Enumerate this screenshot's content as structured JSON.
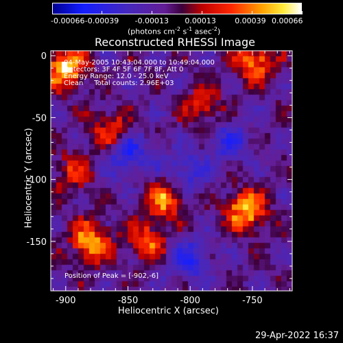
{
  "colorbar": {
    "ticks": [
      "-0.00066",
      "-0.00039",
      "-0.00013",
      "0.00013",
      "0.00039",
      "0.00066"
    ],
    "units_main": "(photons cm",
    "units_exp1": "-2",
    "units_mid": " s",
    "units_exp2": "-1",
    "units_end": " asec",
    "units_exp3": "-2",
    "units_close": ")"
  },
  "chart_data": {
    "type": "heatmap",
    "title": "Reconstructed RHESSI Image",
    "xlabel": "Heliocentric X (arcsec)",
    "ylabel": "Heliocentric Y (arcsec)",
    "xlim": [
      -912,
      -718
    ],
    "ylim": [
      -190,
      4
    ],
    "x_ticks": [
      "-900",
      "-850",
      "-800",
      "-750"
    ],
    "y_ticks": [
      "0",
      "-50",
      "-100",
      "-150"
    ],
    "colorbar_range": [
      -0.00066,
      0.00066
    ],
    "annotations": [
      "04-May-2005 10:43:04.000 to 10:49:04.000",
      "Detectors: 3F 4F 5F 6F 7F 8F, Att 0",
      "Energy Range: 12.0 - 25.0 keV",
      "Clean     Total counts: 2.96E+03"
    ],
    "peak_label": "Position of Peak = [-902,-6]",
    "peak": [
      -902,
      -6
    ],
    "hot_regions": [
      {
        "x": -900,
        "y": -10,
        "v": 0.00066
      },
      {
        "x": -748,
        "y": -5,
        "v": 0.0005
      },
      {
        "x": -820,
        "y": -115,
        "v": 0.0005
      },
      {
        "x": -755,
        "y": -125,
        "v": 0.0006
      },
      {
        "x": -880,
        "y": -150,
        "v": 0.00055
      },
      {
        "x": -835,
        "y": -150,
        "v": 0.0004
      },
      {
        "x": -865,
        "y": -60,
        "v": 0.00035
      },
      {
        "x": -790,
        "y": -40,
        "v": 0.0003
      },
      {
        "x": -895,
        "y": -95,
        "v": 0.0003
      }
    ],
    "cold_regions": [
      {
        "x": -850,
        "y": -80,
        "v": -0.00035
      },
      {
        "x": -800,
        "y": -165,
        "v": -0.0003
      },
      {
        "x": -770,
        "y": -70,
        "v": -0.00025
      },
      {
        "x": -805,
        "y": -95,
        "v": -0.0003
      }
    ]
  },
  "timestamp": "29-Apr-2022 16:37"
}
